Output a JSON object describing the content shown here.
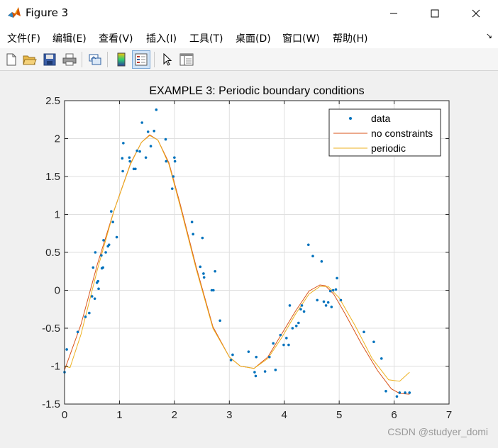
{
  "window": {
    "title": "Figure 3",
    "minimize_icon": "minimize-icon",
    "maximize_icon": "maximize-icon",
    "close_icon": "close-icon"
  },
  "menu": {
    "items": [
      "文件(F)",
      "编辑(E)",
      "查看(V)",
      "插入(I)",
      "工具(T)",
      "桌面(D)",
      "窗口(W)",
      "帮助(H)"
    ],
    "more_glyph": "↘"
  },
  "toolbar": {
    "buttons": [
      "new-figure-icon",
      "open-file-icon",
      "save-icon",
      "print-icon",
      "link-plot-icon",
      "colorbar-icon",
      "legend-icon",
      "pointer-icon",
      "property-inspector-icon"
    ]
  },
  "watermark": "CSDN @studyer_domi",
  "chart_data": {
    "type": "line",
    "title": "EXAMPLE 3: Periodic boundary conditions",
    "xlabel": "",
    "ylabel": "",
    "xlim": [
      0,
      7
    ],
    "ylim": [
      -1.5,
      2.5
    ],
    "xticks": [
      0,
      1,
      2,
      3,
      4,
      5,
      6,
      7
    ],
    "yticks": [
      -1.5,
      -1,
      -0.5,
      0,
      0.5,
      1,
      1.5,
      2,
      2.5
    ],
    "grid": true,
    "legend_position": "top-right",
    "series": [
      {
        "name": "data",
        "style": "markers",
        "color": "#0072bd",
        "x": [
          0.0,
          0.04,
          0.24,
          0.38,
          0.45,
          0.5,
          0.52,
          0.55,
          0.56,
          0.59,
          0.61,
          0.62,
          0.67,
          0.68,
          0.7,
          0.71,
          0.75,
          0.79,
          0.81,
          0.85,
          0.88,
          0.95,
          1.05,
          1.06,
          1.07,
          1.18,
          1.19,
          1.26,
          1.29,
          1.32,
          1.37,
          1.41,
          1.48,
          1.52,
          1.57,
          1.63,
          1.67,
          1.84,
          1.85,
          1.96,
          1.98,
          2.0,
          2.01,
          2.32,
          2.34,
          2.47,
          2.51,
          2.53,
          2.54,
          2.68,
          2.71,
          2.74,
          2.83,
          3.03,
          3.06,
          3.35,
          3.46,
          3.48,
          3.49,
          3.65,
          3.73,
          3.8,
          3.84,
          3.93,
          3.99,
          4.04,
          4.08,
          4.1,
          4.15,
          4.22,
          4.26,
          4.3,
          4.32,
          4.36,
          4.44,
          4.52,
          4.6,
          4.68,
          4.72,
          4.76,
          4.8,
          4.84,
          4.86,
          4.89,
          4.94,
          4.96,
          5.03,
          5.45,
          5.63,
          5.77,
          5.85,
          6.05,
          6.1,
          6.2,
          6.28
        ],
        "y": [
          -1.08,
          -0.78,
          -0.55,
          -0.35,
          -0.3,
          -0.08,
          0.3,
          -0.11,
          0.5,
          0.1,
          0.12,
          0.02,
          0.46,
          0.29,
          0.3,
          0.66,
          0.5,
          0.58,
          0.6,
          1.04,
          0.9,
          0.7,
          1.74,
          1.57,
          1.94,
          1.75,
          1.7,
          1.6,
          1.6,
          1.84,
          1.83,
          2.21,
          1.75,
          2.09,
          1.9,
          2.1,
          2.38,
          1.99,
          1.7,
          1.34,
          1.5,
          1.75,
          1.7,
          0.9,
          0.74,
          0.31,
          0.69,
          0.22,
          0.17,
          0.0,
          0.0,
          0.25,
          -0.4,
          -0.92,
          -0.85,
          -0.81,
          -1.08,
          -1.13,
          -0.88,
          -1.07,
          -0.88,
          -0.7,
          -1.05,
          -0.59,
          -0.72,
          -0.63,
          -0.72,
          -0.2,
          -0.5,
          -0.47,
          -0.43,
          -0.25,
          -0.2,
          -0.28,
          0.6,
          0.45,
          -0.13,
          0.38,
          -0.15,
          -0.2,
          -0.16,
          -0.01,
          -0.22,
          0.0,
          0.01,
          0.16,
          -0.13,
          -0.55,
          -0.68,
          -0.9,
          -1.33,
          -1.4,
          -1.35,
          -1.35,
          -1.35
        ]
      },
      {
        "name": "no constraints",
        "style": "line",
        "color": "#d95319",
        "x": [
          0.0,
          0.3,
          0.6,
          0.9,
          1.2,
          1.4,
          1.55,
          1.7,
          1.9,
          2.1,
          2.4,
          2.7,
          3.0,
          3.2,
          3.45,
          3.7,
          3.95,
          4.2,
          4.45,
          4.65,
          4.75,
          4.9,
          5.1,
          5.4,
          5.7,
          5.95,
          6.1,
          6.28
        ],
        "y": [
          -1.05,
          -0.45,
          0.35,
          1.05,
          1.67,
          1.95,
          2.05,
          1.98,
          1.68,
          1.15,
          0.3,
          -0.48,
          -0.88,
          -1.0,
          -1.03,
          -0.88,
          -0.58,
          -0.28,
          -0.01,
          0.07,
          0.06,
          -0.05,
          -0.3,
          -0.7,
          -1.06,
          -1.3,
          -1.36,
          -1.37
        ]
      },
      {
        "name": "periodic",
        "style": "line",
        "color": "#edb120",
        "x": [
          0.0,
          0.1,
          0.3,
          0.6,
          0.9,
          1.2,
          1.4,
          1.55,
          1.7,
          1.9,
          2.1,
          2.4,
          2.7,
          3.0,
          3.2,
          3.45,
          3.7,
          3.95,
          4.2,
          4.45,
          4.65,
          4.8,
          5.0,
          5.3,
          5.6,
          5.9,
          6.1,
          6.28
        ],
        "y": [
          -1.0,
          -1.02,
          -0.58,
          0.28,
          1.05,
          1.66,
          1.95,
          2.04,
          1.98,
          1.66,
          1.12,
          0.27,
          -0.5,
          -0.88,
          -1.0,
          -1.03,
          -0.9,
          -0.63,
          -0.32,
          -0.05,
          0.05,
          0.05,
          -0.1,
          -0.48,
          -0.9,
          -1.18,
          -1.2,
          -1.08
        ]
      }
    ]
  }
}
